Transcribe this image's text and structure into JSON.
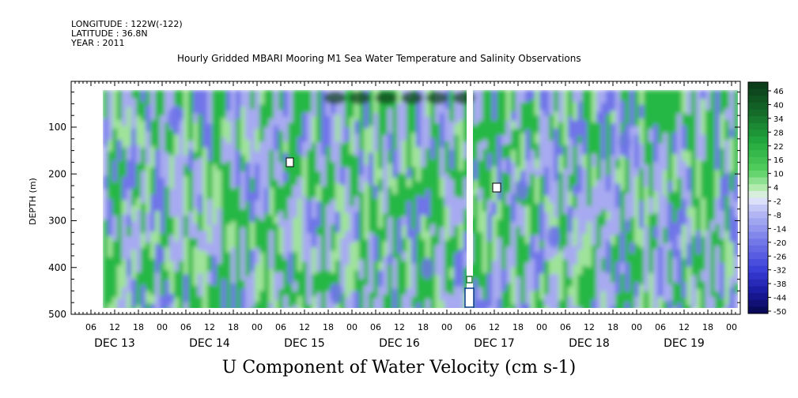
{
  "header": {
    "longitude": "LONGITUDE : 122W(-122)",
    "latitude": "LATITUDE : 36.8N",
    "year": "YEAR : 2011",
    "title": "Hourly Gridded MBARI Mooring M1 Sea Water Temperature and Salinity Observations"
  },
  "chart_data": {
    "type": "heatmap",
    "title": "U Component of Water Velocity (cm s-1)",
    "ylabel": "DEPTH (m)",
    "xlabel": "",
    "y_axis": {
      "ticks": [
        100,
        200,
        300,
        400,
        500
      ],
      "range": [
        20,
        500
      ],
      "inverted": true
    },
    "x_axis": {
      "hour_ticks": [
        "06",
        "12",
        "18",
        "00",
        "06",
        "12",
        "18",
        "00",
        "06",
        "12",
        "18",
        "00",
        "06",
        "12",
        "18",
        "00",
        "06",
        "12",
        "18",
        "00",
        "06",
        "12",
        "18",
        "00",
        "06",
        "12",
        "18",
        "00"
      ],
      "day_labels": [
        "DEC 13",
        "DEC 14",
        "DEC 15",
        "DEC 16",
        "DEC 17",
        "DEC 18",
        "DEC 19"
      ]
    },
    "colorbar": {
      "levels": [
        "46",
        "40",
        "34",
        "28",
        "22",
        "16",
        "10",
        "4",
        "-2",
        "-8",
        "-14",
        "-20",
        "-26",
        "-32",
        "-38",
        "-44",
        "-50"
      ],
      "range": [
        -50,
        50
      ]
    },
    "colors": {
      "dark_green": "#0b3d1a",
      "green": "#26b845",
      "light_green": "#9fe39a",
      "lavender": "#a7aaf0",
      "blue": "#6f74e8",
      "dark_blue": "#1a1aa0"
    },
    "regions": [
      {
        "day": "DEC 13",
        "surface": "green",
        "deep": "lavender"
      },
      {
        "day": "DEC 14",
        "surface": "lavender",
        "deep": "green"
      },
      {
        "day": "DEC 15",
        "surface": "green",
        "deep": "green"
      },
      {
        "day": "DEC 16",
        "surface": "dark_green",
        "deep": "lavender"
      },
      {
        "day": "DEC 17",
        "surface": "green",
        "deep": "green"
      },
      {
        "day": "DEC 18",
        "surface": "lavender",
        "deep": "green"
      },
      {
        "day": "DEC 19",
        "surface": "green",
        "deep": "lavender"
      }
    ]
  }
}
